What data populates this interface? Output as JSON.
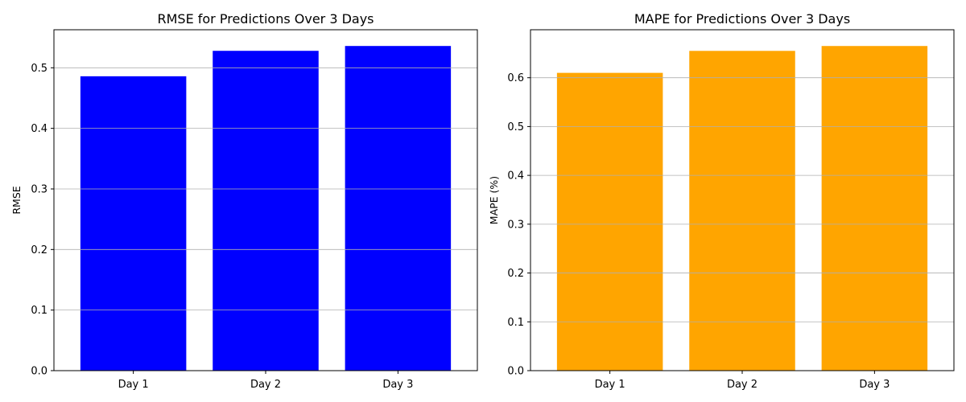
{
  "chart_data": [
    {
      "type": "bar",
      "title": "RMSE for Predictions Over 3 Days",
      "xlabel": "",
      "ylabel": "RMSE",
      "categories": [
        "Day 1",
        "Day 2",
        "Day 3"
      ],
      "values": [
        0.486,
        0.528,
        0.536
      ],
      "color": "#0000ff",
      "ylim": [
        0,
        0.5628
      ],
      "yticks": [
        0.0,
        0.1,
        0.2,
        0.3,
        0.4,
        0.5
      ],
      "ytick_labels": [
        "0.0",
        "0.1",
        "0.2",
        "0.3",
        "0.4",
        "0.5"
      ],
      "grid": "y-axis"
    },
    {
      "type": "bar",
      "title": "MAPE for Predictions Over 3 Days",
      "xlabel": "",
      "ylabel": "MAPE (%)",
      "categories": [
        "Day 1",
        "Day 2",
        "Day 3"
      ],
      "values": [
        0.61,
        0.655,
        0.665
      ],
      "color": "#ffa500",
      "ylim": [
        0,
        0.6983
      ],
      "yticks": [
        0.0,
        0.1,
        0.2,
        0.3,
        0.4,
        0.5,
        0.6
      ],
      "ytick_labels": [
        "0.0",
        "0.1",
        "0.2",
        "0.3",
        "0.4",
        "0.5",
        "0.6"
      ],
      "grid": "y-axis"
    }
  ]
}
